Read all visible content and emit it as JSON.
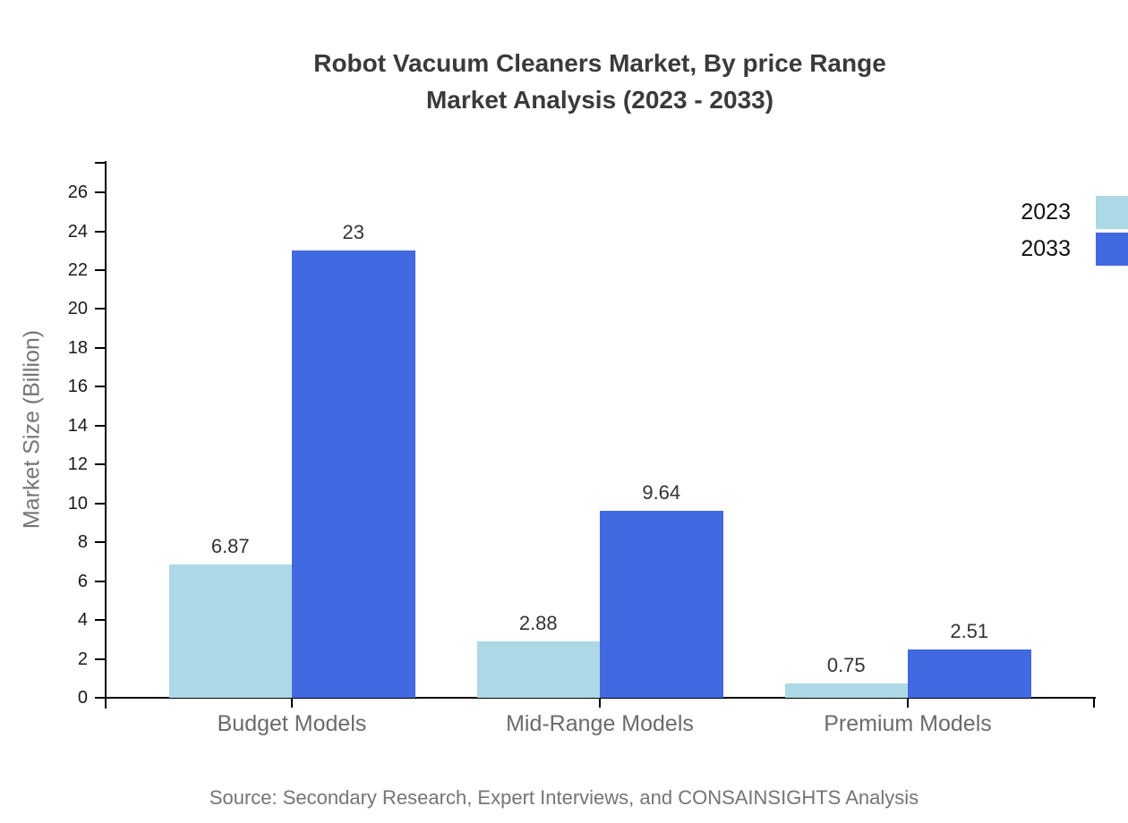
{
  "title": {
    "line1": "Robot Vacuum Cleaners Market, By price Range",
    "line2": "Market Analysis (2023 - 2033)"
  },
  "source_note": "Source: Secondary Research, Expert Interviews, and CONSAINSIGHTS Analysis",
  "colors": {
    "series_2023": "#add8e6",
    "series_2033": "#4169e1",
    "axis": "#000000",
    "title_text": "#3a3a3a",
    "category_text": "#6b6b6b",
    "tick_text": "#1a1a1a",
    "value_label_text": "#333333",
    "muted_text": "#757575",
    "legend_text": "#111111",
    "background": "#ffffff"
  },
  "chart_data": {
    "type": "bar",
    "title": "Robot Vacuum Cleaners Market, By price Range Market Analysis (2023 - 2033)",
    "categories": [
      "Budget Models",
      "Mid-Range Models",
      "Premium Models"
    ],
    "series": [
      {
        "name": "2023",
        "color": "#add8e6",
        "values": [
          6.87,
          2.88,
          0.75
        ],
        "labels": [
          "6.87",
          "2.88",
          "0.75"
        ]
      },
      {
        "name": "2033",
        "color": "#4169e1",
        "values": [
          23,
          9.64,
          2.51
        ],
        "labels": [
          "23",
          "9.64",
          "2.51"
        ]
      }
    ],
    "xlabel": "",
    "ylabel": "Market Size (Billion)",
    "ylim": [
      0,
      27.6
    ],
    "yticks": [
      0,
      2,
      4,
      6,
      8,
      10,
      12,
      14,
      16,
      18,
      20,
      22,
      24,
      26
    ],
    "ytick_step": 2,
    "grid": false,
    "legend_position": "top-right",
    "bar_value_labels": true
  }
}
